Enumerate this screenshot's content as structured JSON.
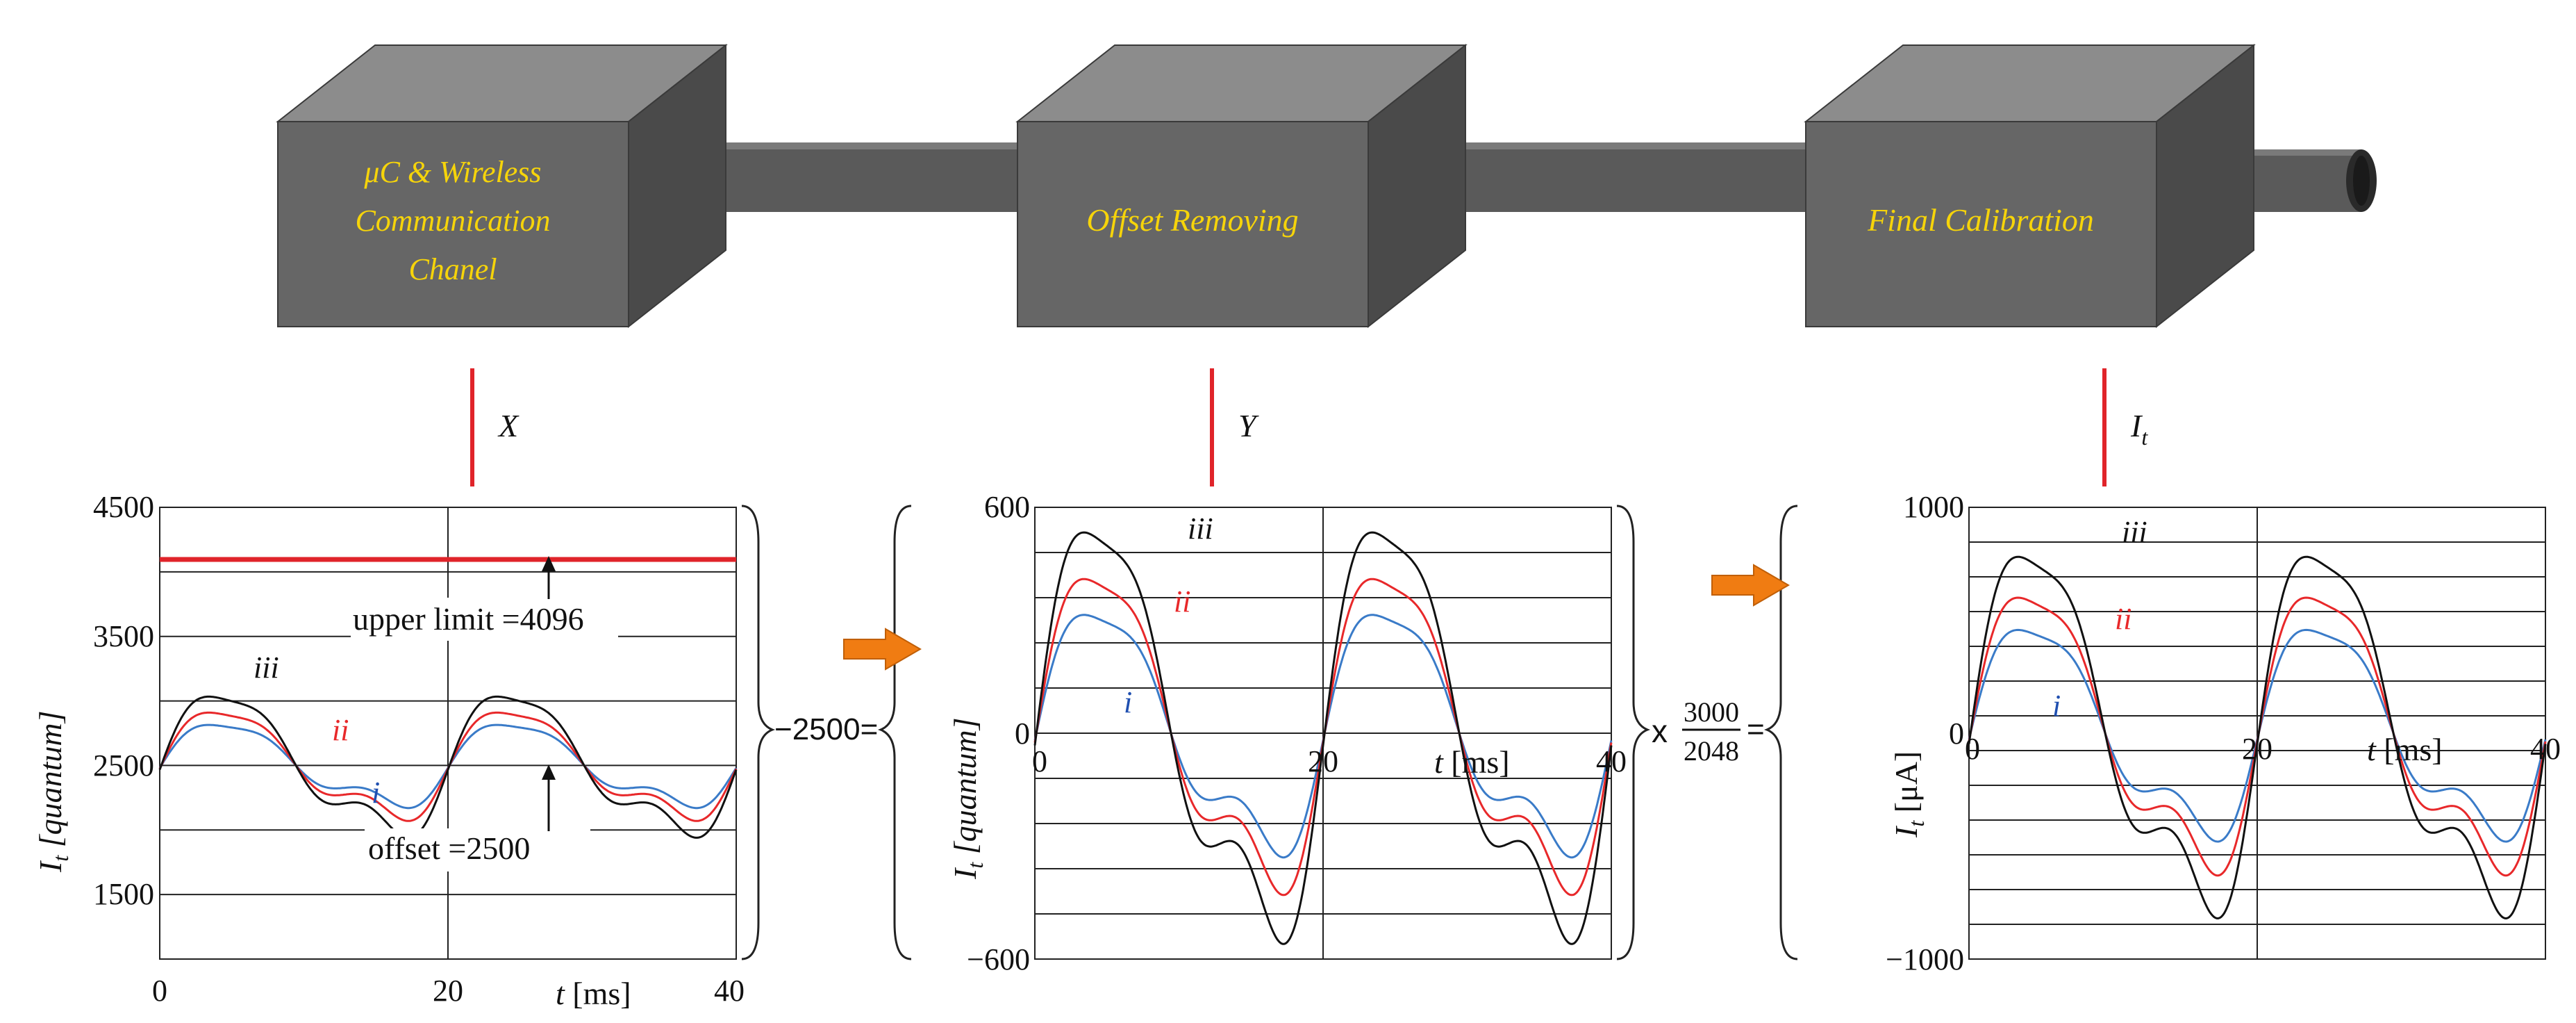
{
  "colors": {
    "box_front": "#666666",
    "box_top": "#8c8c8c",
    "box_side": "#4a4a4a",
    "box_text": "#f6d40a",
    "signal_line": "#e0242a",
    "arrow": "#f07c12",
    "series_i": "#3a7bc8",
    "series_ii": "#e8282a",
    "series_iii": "#111111",
    "grid": "#222222"
  },
  "blocks": [
    {
      "lines": [
        "μC & Wireless",
        "Communication",
        "Chanel"
      ]
    },
    {
      "lines": [
        "Offset Removing"
      ]
    },
    {
      "lines": [
        "Final Calibration"
      ]
    }
  ],
  "signals": [
    {
      "label": "X"
    },
    {
      "label": "Y"
    },
    {
      "label": "I",
      "subscript": "t"
    }
  ],
  "operations": {
    "subtract": "−2500=",
    "multiply_sign": "x",
    "fraction_num": "3000",
    "fraction_den": "2048",
    "equals": "="
  },
  "chart_data": [
    {
      "type": "line",
      "ylabel": "I",
      "ylabel_sub": "t",
      "ylabel_unit": "[quantum]",
      "xlabel": "t",
      "xlabel_unit": "[ms]",
      "xlim": [
        0,
        40
      ],
      "ylim": [
        1000,
        4500
      ],
      "xticks": [
        "0",
        "20",
        "40"
      ],
      "yticks": [
        "4500",
        "3500",
        "2500",
        "1500"
      ],
      "upper_limit": 4096,
      "annotations": {
        "upper": "upper limit =4096",
        "offset": "offset =2500"
      },
      "series": [
        {
          "name": "i",
          "offset": 2500,
          "amplitude": 330
        },
        {
          "name": "ii",
          "offset": 2500,
          "amplitude": 430
        },
        {
          "name": "iii",
          "offset": 2500,
          "amplitude": 560
        }
      ]
    },
    {
      "type": "line",
      "ylabel": "I",
      "ylabel_sub": "t",
      "ylabel_unit": "[quantum]",
      "xlabel": "t",
      "xlabel_unit": "[ms]",
      "xlim": [
        0,
        40
      ],
      "ylim": [
        -600,
        600
      ],
      "xticks": [
        "0",
        "20",
        "40"
      ],
      "yticks": [
        "600",
        "0",
        "−600"
      ],
      "series": [
        {
          "name": "i",
          "offset": 0,
          "amplitude": 330
        },
        {
          "name": "ii",
          "offset": 0,
          "amplitude": 430
        },
        {
          "name": "iii",
          "offset": 0,
          "amplitude": 560
        }
      ]
    },
    {
      "type": "line",
      "ylabel": "I",
      "ylabel_sub": "t",
      "ylabel_unit": "[μA]",
      "xlabel": "t",
      "xlabel_unit": "[ms]",
      "xlim": [
        0,
        40
      ],
      "ylim": [
        -1000,
        1000
      ],
      "xticks": [
        "0",
        "20",
        "40"
      ],
      "yticks": [
        "1000",
        "0",
        "−1000"
      ],
      "series": [
        {
          "name": "i",
          "offset": 0,
          "amplitude": 480
        },
        {
          "name": "ii",
          "offset": 0,
          "amplitude": 630
        },
        {
          "name": "iii",
          "offset": 0,
          "amplitude": 820
        }
      ]
    }
  ]
}
